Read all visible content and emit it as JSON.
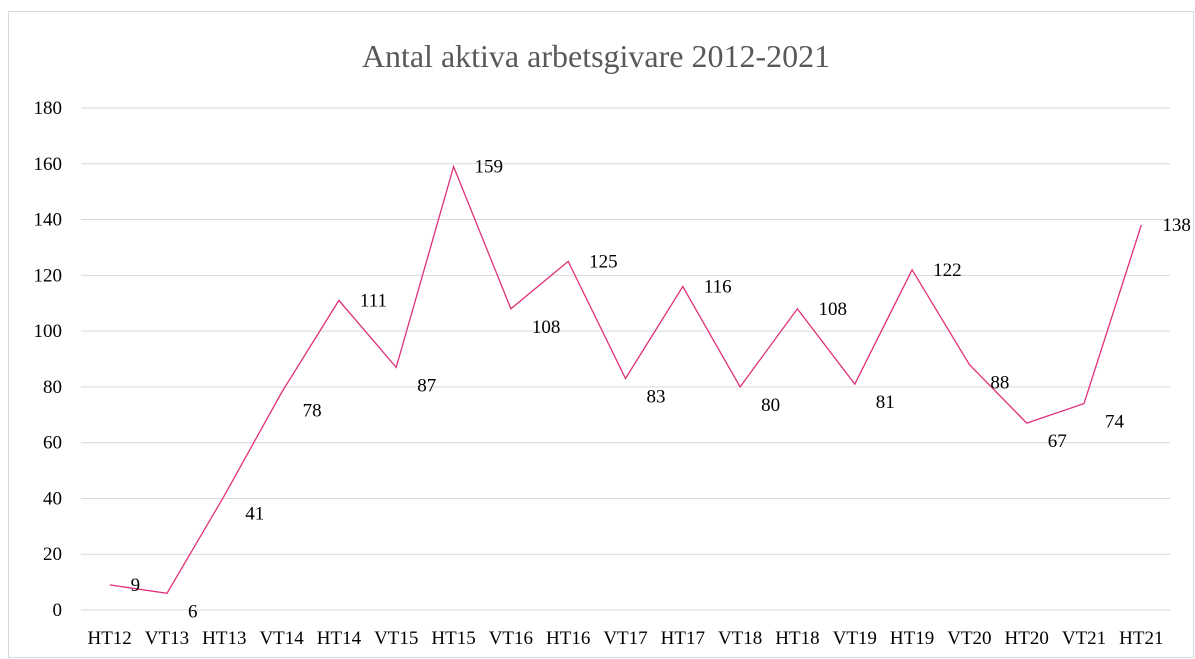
{
  "chart_data": {
    "type": "line",
    "title": "Antal aktiva arbetsgivare 2012-2021",
    "xlabel": "",
    "ylabel": "",
    "categories": [
      "HT12",
      "VT13",
      "HT13",
      "VT14",
      "HT14",
      "VT15",
      "HT15",
      "VT16",
      "HT16",
      "VT17",
      "HT17",
      "VT18",
      "HT18",
      "VT19",
      "HT19",
      "VT20",
      "HT20",
      "VT21",
      "HT21"
    ],
    "series": [
      {
        "values": [
          9,
          6,
          41,
          78,
          111,
          87,
          159,
          108,
          125,
          83,
          116,
          80,
          108,
          81,
          122,
          88,
          67,
          74,
          138
        ]
      }
    ],
    "data_labels": [
      "9",
      "6",
      "41",
      "78",
      "111",
      "87",
      "159",
      "108",
      "125",
      "83",
      "116",
      "80",
      "108",
      "81",
      "122",
      "88",
      "67",
      "74",
      "138"
    ],
    "ylim": [
      0,
      180
    ],
    "yticks": [
      0,
      20,
      40,
      60,
      80,
      100,
      120,
      140,
      160,
      180
    ],
    "ytick_labels": [
      "0",
      "20",
      "40",
      "60",
      "80",
      "100",
      "120",
      "140",
      "160",
      "180"
    ],
    "grid": true,
    "legend": "none",
    "line_color": "#e0307a",
    "grid_color": "#d9d9d9"
  }
}
